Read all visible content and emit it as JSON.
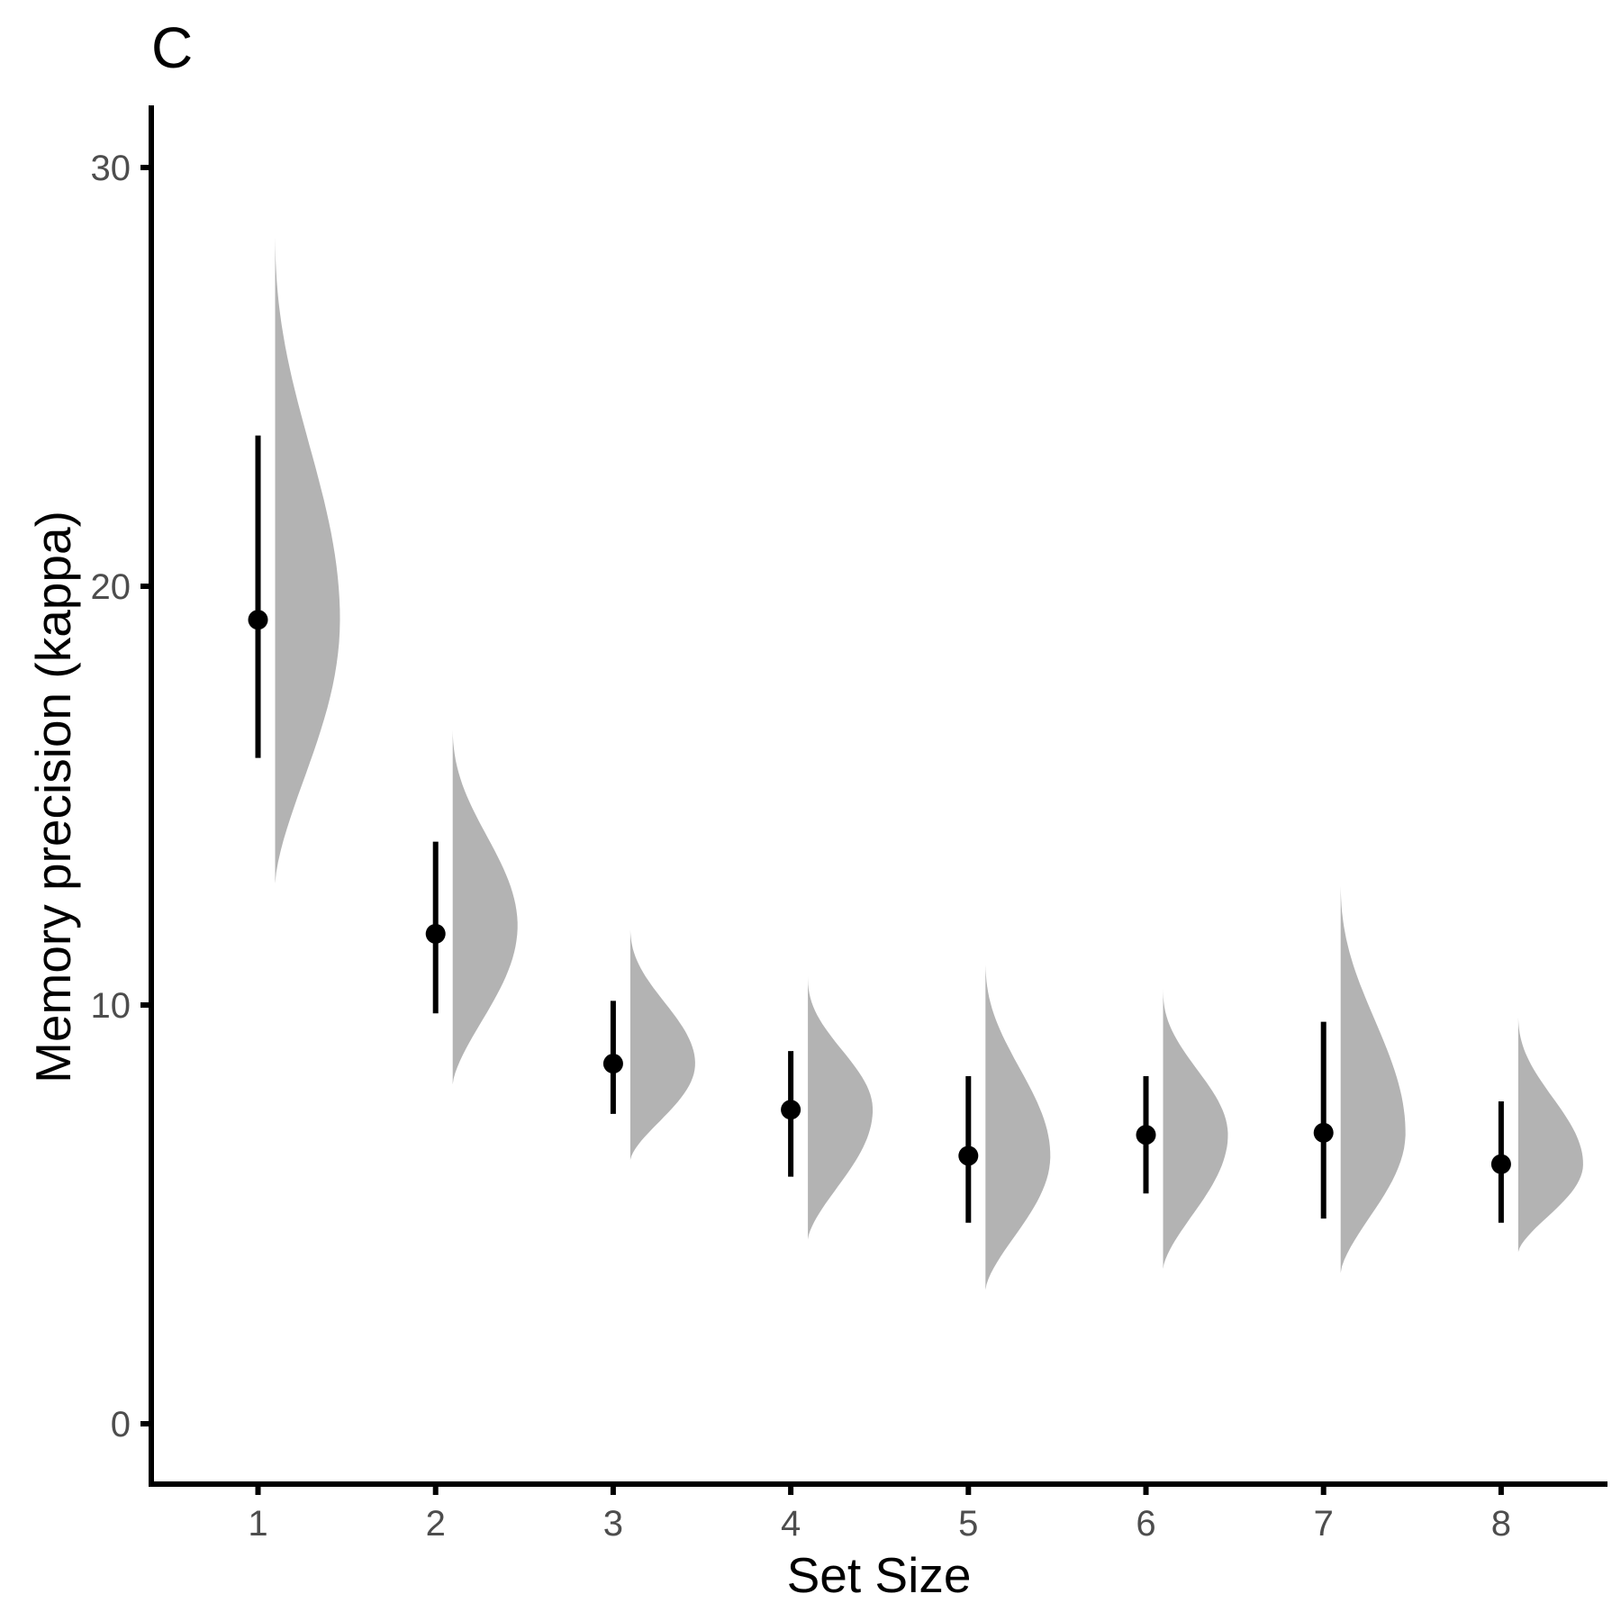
{
  "panel_label": "C",
  "colors": {
    "point": "#000000",
    "interval": "#000000",
    "density": "#b3b3b3",
    "axis": "#000000",
    "tick_label": "#4d4d4d"
  },
  "chart_data": {
    "type": "scatter",
    "subtype": "half-violin with point and interval",
    "title": "",
    "xlabel": "Set Size",
    "ylabel": "Memory precision (kappa)",
    "x_ticks": [
      "1",
      "2",
      "3",
      "4",
      "5",
      "6",
      "7",
      "8"
    ],
    "y_ticks": [
      0,
      10,
      20,
      30
    ],
    "ylim": [
      -1.5,
      31.5
    ],
    "grid": false,
    "legend": "none",
    "series": [
      {
        "points": [
          {
            "x": 1,
            "y": 19.2,
            "lower": 15.9,
            "upper": 23.6,
            "dist_min": 12.9,
            "dist_mode": 19.2,
            "dist_max": 28.6
          },
          {
            "x": 2,
            "y": 11.7,
            "lower": 9.8,
            "upper": 13.9,
            "dist_min": 8.1,
            "dist_mode": 11.9,
            "dist_max": 16.7
          },
          {
            "x": 3,
            "y": 8.6,
            "lower": 7.4,
            "upper": 10.1,
            "dist_min": 6.3,
            "dist_mode": 8.6,
            "dist_max": 11.9
          },
          {
            "x": 4,
            "y": 7.5,
            "lower": 5.9,
            "upper": 8.9,
            "dist_min": 4.4,
            "dist_mode": 7.5,
            "dist_max": 10.7
          },
          {
            "x": 5,
            "y": 6.4,
            "lower": 4.8,
            "upper": 8.3,
            "dist_min": 3.2,
            "dist_mode": 6.4,
            "dist_max": 11.1
          },
          {
            "x": 6,
            "y": 6.9,
            "lower": 5.5,
            "upper": 8.3,
            "dist_min": 3.7,
            "dist_mode": 6.9,
            "dist_max": 10.4
          },
          {
            "x": 7,
            "y": 6.95,
            "lower": 4.9,
            "upper": 9.6,
            "dist_min": 3.6,
            "dist_mode": 6.95,
            "dist_max": 13.0
          },
          {
            "x": 8,
            "y": 6.2,
            "lower": 4.8,
            "upper": 7.7,
            "dist_min": 4.1,
            "dist_mode": 6.2,
            "dist_max": 9.8
          }
        ]
      }
    ]
  }
}
